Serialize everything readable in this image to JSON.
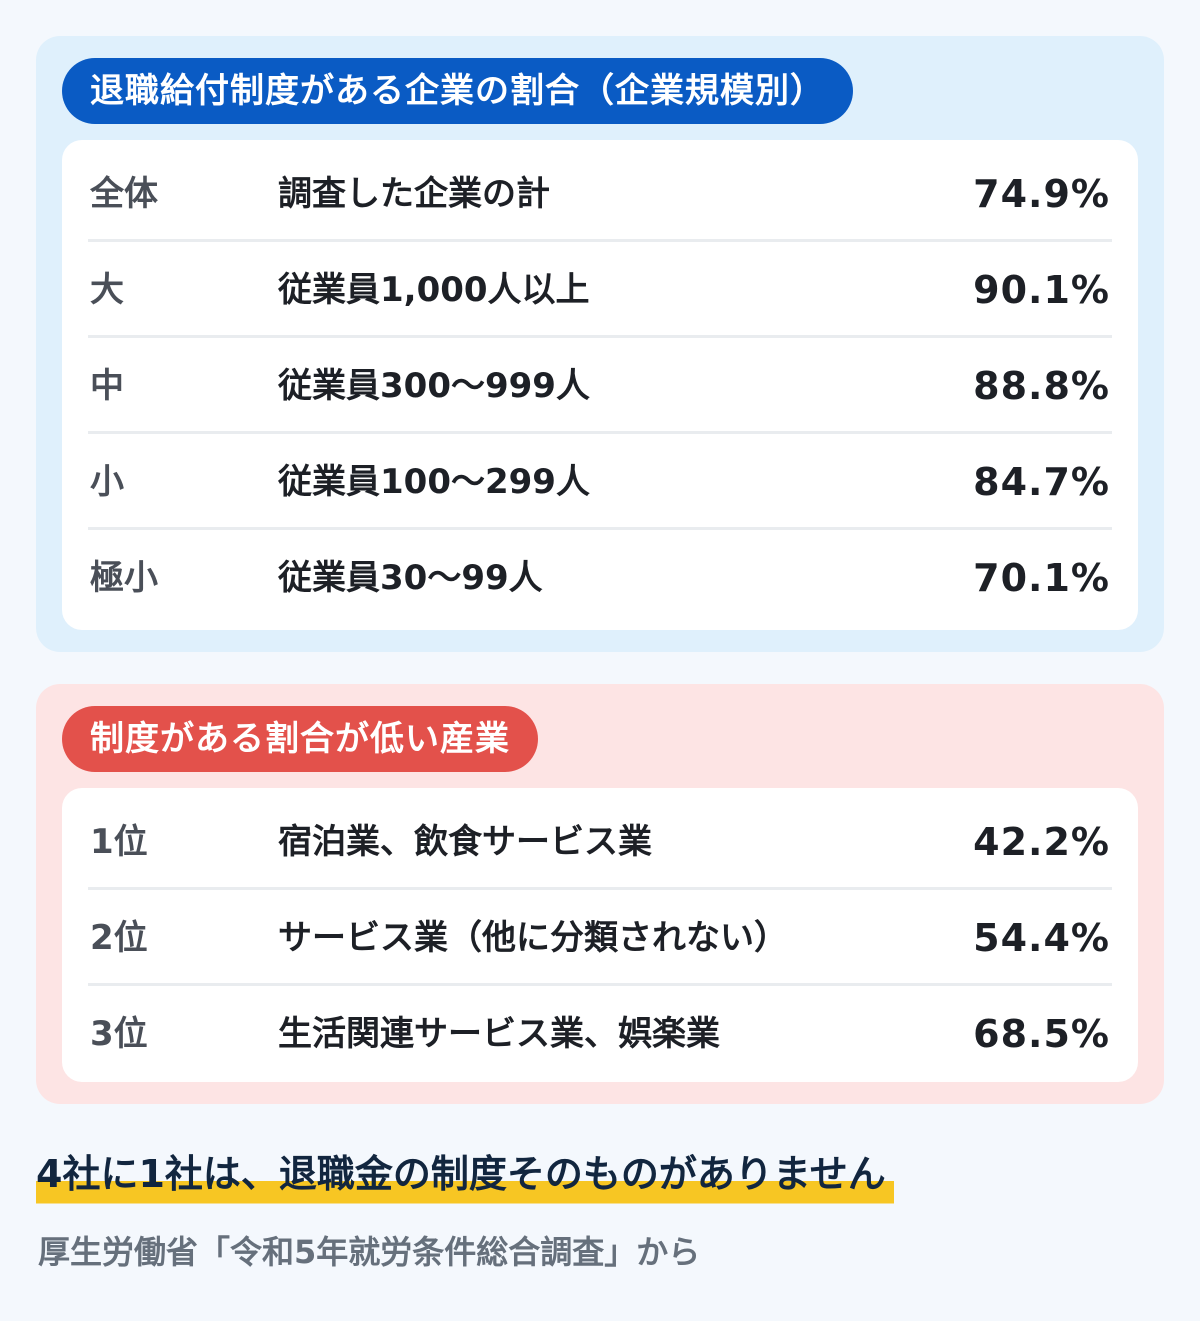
{
  "size_section": {
    "title": "退職給付制度がある企業の割合（企業規模別）",
    "rows": [
      {
        "label": "全体",
        "description": "調査した企業の計",
        "value": "74.9%"
      },
      {
        "label": "大",
        "description": "従業員1,000人以上",
        "value": "90.1%"
      },
      {
        "label": "中",
        "description": "従業員300〜999人",
        "value": "88.8%"
      },
      {
        "label": "小",
        "description": "従業員100〜299人",
        "value": "84.7%"
      },
      {
        "label": "極小",
        "description": "従業員30〜99人",
        "value": "70.1%"
      }
    ]
  },
  "industry_section": {
    "title": "制度がある割合が低い産業",
    "rows": [
      {
        "label": "1位",
        "description": "宿泊業、飲食サービス業",
        "value": "42.2%"
      },
      {
        "label": "2位",
        "description": "サービス業（他に分類されない）",
        "value": "54.4%"
      },
      {
        "label": "3位",
        "description": "生活関連サービス業、娯楽業",
        "value": "68.5%"
      }
    ]
  },
  "summary": "4社に1社は、退職金の制度そのものがありません",
  "source": "厚生労働省「令和5年就労条件総合調査」から",
  "colors": {
    "blue_accent": "#0a5bc4",
    "blue_panel": "#dff0fc",
    "red_accent": "#e3514b",
    "red_panel": "#fde4e4",
    "highlight": "#f7c623"
  }
}
